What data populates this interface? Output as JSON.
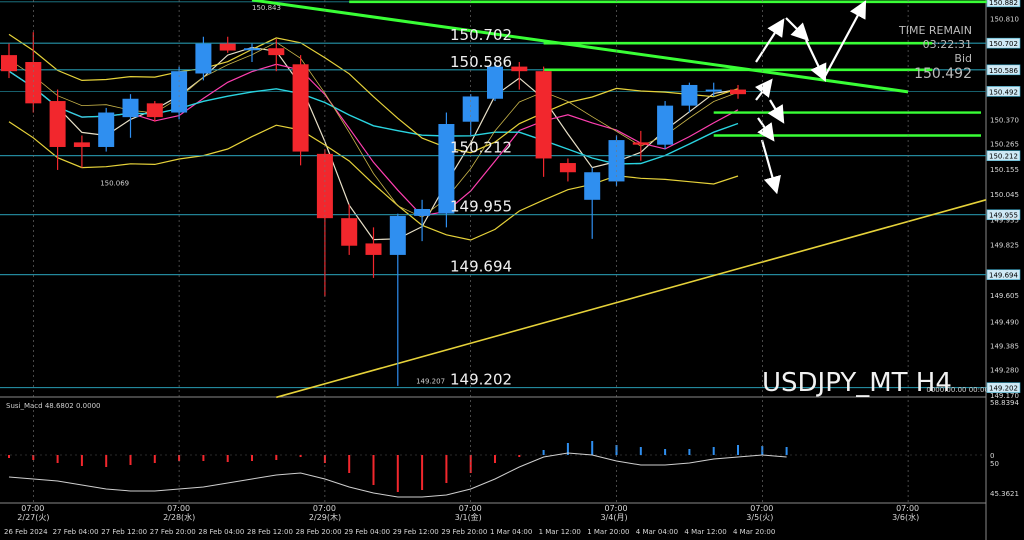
{
  "chart_data": {
    "type": "candlestick",
    "symbol_label": "USDJPY_MT H4",
    "info": {
      "time_remain_label": "TIME REMAIN",
      "time_remain": "03:22:31",
      "bid_label": "Bid",
      "bid": "150.492"
    },
    "top_label": "150.843",
    "price_range": [
      149.17,
      150.89
    ],
    "price_ticks": [
      "150.882",
      "150.810",
      "150.702",
      "150.586",
      "150.492",
      "150.370",
      "150.265",
      "150.155",
      "150.045",
      "149.955",
      "149.935",
      "149.825",
      "149.694",
      "149.605",
      "149.490",
      "149.385",
      "149.280",
      "149.202",
      "149.170"
    ],
    "highlight_ticks": [
      "150.882",
      "150.702",
      "150.586",
      "150.492",
      "150.212",
      "149.955",
      "149.694",
      "149.202"
    ],
    "levels": [
      {
        "label": "150.702",
        "price": 150.702
      },
      {
        "label": "150.586",
        "price": 150.586
      },
      {
        "label": "150.212",
        "price": 150.212
      },
      {
        "label": "149.955",
        "price": 149.955
      },
      {
        "label": "149.694",
        "price": 149.694
      },
      {
        "label": "149.202",
        "price": 149.202
      }
    ],
    "small_labels": [
      {
        "text": "150.069",
        "price": 150.069,
        "slot": 4
      },
      {
        "text": "149.207",
        "price": 149.207,
        "slot": 17
      },
      {
        "text": "0000.00.00 00:00",
        "price": 149.17,
        "slot": 38
      }
    ],
    "ohlc": [
      {
        "o": 150.65,
        "h": 150.7,
        "l": 150.55,
        "c": 150.58
      },
      {
        "o": 150.62,
        "h": 150.75,
        "l": 150.4,
        "c": 150.44
      },
      {
        "o": 150.45,
        "h": 150.5,
        "l": 150.15,
        "c": 150.25
      },
      {
        "o": 150.27,
        "h": 150.3,
        "l": 150.16,
        "c": 150.25
      },
      {
        "o": 150.25,
        "h": 150.42,
        "l": 150.23,
        "c": 150.4
      },
      {
        "o": 150.38,
        "h": 150.48,
        "l": 150.29,
        "c": 150.46
      },
      {
        "o": 150.44,
        "h": 150.45,
        "l": 150.36,
        "c": 150.38
      },
      {
        "o": 150.4,
        "h": 150.6,
        "l": 150.37,
        "c": 150.58
      },
      {
        "o": 150.57,
        "h": 150.73,
        "l": 150.54,
        "c": 150.7
      },
      {
        "o": 150.7,
        "h": 150.73,
        "l": 150.66,
        "c": 150.67
      },
      {
        "o": 150.68,
        "h": 150.7,
        "l": 150.62,
        "c": 150.68
      },
      {
        "o": 150.68,
        "h": 150.72,
        "l": 150.58,
        "c": 150.65
      },
      {
        "o": 150.61,
        "h": 150.65,
        "l": 150.17,
        "c": 150.23
      },
      {
        "o": 150.22,
        "h": 150.24,
        "l": 149.6,
        "c": 149.94
      },
      {
        "o": 149.94,
        "h": 150.0,
        "l": 149.78,
        "c": 149.82
      },
      {
        "o": 149.83,
        "h": 149.9,
        "l": 149.68,
        "c": 149.78
      },
      {
        "o": 149.78,
        "h": 149.96,
        "l": 149.21,
        "c": 149.95
      },
      {
        "o": 149.95,
        "h": 150.02,
        "l": 149.84,
        "c": 149.98
      },
      {
        "o": 149.96,
        "h": 150.4,
        "l": 149.9,
        "c": 150.35
      },
      {
        "o": 150.36,
        "h": 150.48,
        "l": 150.3,
        "c": 150.47
      },
      {
        "o": 150.46,
        "h": 150.62,
        "l": 150.45,
        "c": 150.6
      },
      {
        "o": 150.6,
        "h": 150.62,
        "l": 150.5,
        "c": 150.58
      },
      {
        "o": 150.58,
        "h": 150.6,
        "l": 150.12,
        "c": 150.2
      },
      {
        "o": 150.18,
        "h": 150.2,
        "l": 150.1,
        "c": 150.14
      },
      {
        "o": 150.02,
        "h": 150.16,
        "l": 149.85,
        "c": 150.14
      },
      {
        "o": 150.1,
        "h": 150.3,
        "l": 150.08,
        "c": 150.28
      },
      {
        "o": 150.27,
        "h": 150.32,
        "l": 150.19,
        "c": 150.26
      },
      {
        "o": 150.26,
        "h": 150.45,
        "l": 150.24,
        "c": 150.43
      },
      {
        "o": 150.43,
        "h": 150.53,
        "l": 150.4,
        "c": 150.52
      },
      {
        "o": 150.5,
        "h": 150.53,
        "l": 150.47,
        "c": 150.5
      },
      {
        "o": 150.5,
        "h": 150.52,
        "l": 150.46,
        "c": 150.48
      }
    ],
    "time_labels": [
      {
        "top": "07:00",
        "bot": "2/27(火)",
        "slot": 1
      },
      {
        "top": "07:00",
        "bot": "2/28(水)",
        "slot": 7
      },
      {
        "top": "07:00",
        "bot": "2/29(木)",
        "slot": 13
      },
      {
        "top": "07:00",
        "bot": "3/1(金)",
        "slot": 19
      },
      {
        "top": "07:00",
        "bot": "3/4(月)",
        "slot": 25
      },
      {
        "top": "07:00",
        "bot": "3/5(火)",
        "slot": 31
      },
      {
        "top": "07:00",
        "bot": "3/6(水)",
        "slot": 37
      }
    ],
    "date_labels": [
      "26 Feb 2024",
      "27 Feb 04:00",
      "27 Feb 12:00",
      "27 Feb 20:00",
      "28 Feb 04:00",
      "28 Feb 12:00",
      "28 Feb 20:00",
      "29 Feb 04:00",
      "29 Feb 12:00",
      "29 Feb 20:00",
      "1 Mar 04:00",
      "1 Mar 12:00",
      "1 Mar 20:00",
      "4 Mar 04:00",
      "4 Mar 12:00",
      "4 Mar 20:00"
    ],
    "macd": {
      "header": "Susi_Macd 48.6802  0.0000",
      "axis_labels": [
        "58.8394",
        "0",
        "50",
        "45.3621"
      ],
      "hist": [
        -3,
        -5,
        -8,
        -11,
        -12,
        -10,
        -8,
        -6,
        -6,
        -7,
        -6,
        -5,
        -2,
        -8,
        -18,
        -30,
        -37,
        -35,
        -28,
        -18,
        -8,
        -2,
        5,
        12,
        14,
        10,
        8,
        6,
        6,
        8,
        10,
        9,
        8
      ],
      "line": [
        -22,
        -24,
        -26,
        -30,
        -34,
        -36,
        -36,
        -34,
        -32,
        -28,
        -24,
        -20,
        -18,
        -24,
        -32,
        -38,
        -42,
        -42,
        -40,
        -34,
        -24,
        -12,
        -2,
        2,
        0,
        -6,
        -10,
        -10,
        -8,
        -4,
        -2,
        0,
        -2
      ],
      "range": [
        -45,
        55
      ]
    }
  }
}
